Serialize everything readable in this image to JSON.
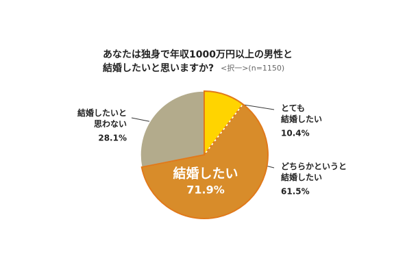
{
  "chart_data": {
    "type": "pie",
    "title": "あなたは独身で年収1000万円以上の男性と\n結婚したいと思いますか?",
    "subtitle": "<択一>(n=1150)",
    "categories": [
      "とても\n結婚したい",
      "どちらかというと\n結婚したい",
      "結婚したいと\n思わない"
    ],
    "values": [
      10.4,
      61.5,
      28.1
    ],
    "value_labels": [
      "10.4%",
      "61.5%",
      "28.1%"
    ],
    "colors": [
      "#ffd400",
      "#d88c2a",
      "#b3ab8c"
    ],
    "group_label": {
      "text": "結婚したい",
      "value": 71.9,
      "value_label": "71.9%"
    }
  }
}
